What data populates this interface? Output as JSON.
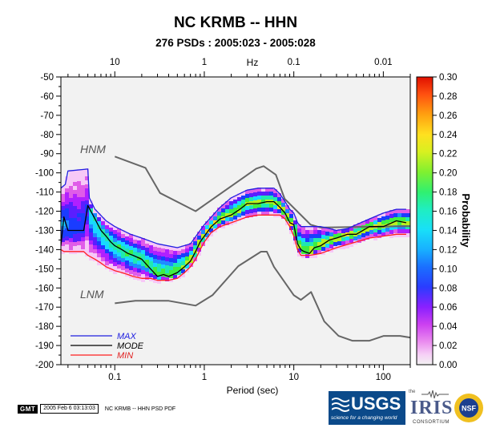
{
  "header": {
    "title": "NC KRMB -- HHN",
    "subtitle": "276 PSDs : 2005:023 - 2005:028"
  },
  "chart_data": {
    "type": "heatmap",
    "title": "NC KRMB -- HHN",
    "subtitle": "276 PSDs : 2005:023 - 2005:028",
    "xlabel": "Period (sec)",
    "ylabel": "",
    "x_scale": "log",
    "xlim": [
      0.025,
      200
    ],
    "ylim": [
      -200,
      -50
    ],
    "x_ticks": [
      0.1,
      1,
      10,
      100
    ],
    "x_tick_labels": [
      "0.1",
      "1",
      "10",
      "100"
    ],
    "y_ticks": [
      -50,
      -60,
      -70,
      -80,
      -90,
      -100,
      -110,
      -120,
      -130,
      -140,
      -150,
      -160,
      -170,
      -180,
      -190,
      -200
    ],
    "top_axis_label": "Hz",
    "top_ticks": [
      {
        "period": 0.1,
        "label": "10"
      },
      {
        "period": 1,
        "label": "1"
      },
      {
        "period": 10,
        "label": "0.1"
      },
      {
        "period": 100,
        "label": "0.01"
      }
    ],
    "colorbar": {
      "label": "Probability",
      "range": [
        0.0,
        0.3
      ],
      "ticks": [
        "0.30",
        "0.28",
        "0.26",
        "0.24",
        "0.22",
        "0.20",
        "0.18",
        "0.16",
        "0.14",
        "0.12",
        "0.10",
        "0.08",
        "0.06",
        "0.04",
        "0.02",
        "0.00"
      ],
      "colors": [
        "#f2f2f2",
        "#f7c8f7",
        "#e05ce8",
        "#b020ff",
        "#5a1eff",
        "#1a3cff",
        "#1f8cff",
        "#18d8ff",
        "#20e8b0",
        "#40ee40",
        "#b8f020",
        "#ffe020",
        "#ff9010",
        "#ff3010",
        "#e00000"
      ]
    },
    "reference_labels": {
      "hnm": "HNM",
      "lnm": "LNM"
    },
    "legend": [
      {
        "name": "MAX",
        "color": "#2020e0"
      },
      {
        "name": "MODE",
        "color": "#000000"
      },
      {
        "name": "MIN",
        "color": "#ff2020"
      }
    ],
    "legend_placement": "bottom-left",
    "series": [
      {
        "name": "HNM",
        "color": "#666666",
        "x": [
          0.1,
          0.22,
          0.32,
          0.8,
          3.8,
          4.6,
          6.3,
          7.9,
          15.4,
          20,
          354
        ],
        "y": [
          -91.5,
          -97.4,
          -110.5,
          -120,
          -97.8,
          -96.5,
          -101,
          -113.5,
          -127,
          -128.5,
          -127.6
        ]
      },
      {
        "name": "LNM",
        "color": "#666666",
        "x": [
          0.1,
          0.17,
          0.4,
          0.8,
          1.24,
          2.4,
          4.3,
          5.0,
          6.0,
          10.0,
          12.0,
          15.6,
          21.9,
          31.6,
          45,
          70,
          101,
          154,
          328
        ],
        "y": [
          -168,
          -166.7,
          -166.7,
          -169.2,
          -163.7,
          -148.6,
          -141.1,
          -141.1,
          -149.0,
          -163.8,
          -166.2,
          -162.1,
          -177.5,
          -185.0,
          -187.5,
          -187.5,
          -185.0,
          -185.0,
          -187.5
        ]
      },
      {
        "name": "MAX",
        "color": "#2020e0",
        "x": [
          0.025,
          0.028,
          0.03,
          0.05,
          0.052,
          0.06,
          0.08,
          0.1,
          0.15,
          0.2,
          0.3,
          0.5,
          0.7,
          1,
          1.5,
          2,
          3,
          4,
          5,
          6,
          7,
          8,
          9,
          10,
          11,
          12,
          14,
          17,
          20,
          25,
          30,
          40,
          50,
          70,
          100,
          140,
          180
        ],
        "y": [
          -108,
          -106,
          -99,
          -98,
          -113,
          -119,
          -125,
          -128,
          -132,
          -134,
          -137,
          -139,
          -137,
          -127,
          -118,
          -113,
          -109,
          -108,
          -108,
          -108,
          -111,
          -115,
          -119,
          -121,
          -126,
          -128,
          -128,
          -128,
          -128,
          -129,
          -130,
          -129,
          -127,
          -124,
          -121,
          -119,
          -119
        ]
      },
      {
        "name": "MODE",
        "color": "#000000",
        "x": [
          0.025,
          0.027,
          0.03,
          0.035,
          0.04,
          0.045,
          0.05,
          0.06,
          0.07,
          0.08,
          0.09,
          0.1,
          0.12,
          0.14,
          0.16,
          0.2,
          0.25,
          0.3,
          0.35,
          0.4,
          0.5,
          0.6,
          0.7,
          0.8,
          0.9,
          1,
          1.2,
          1.5,
          2,
          2.5,
          3,
          4,
          5,
          6,
          7,
          8,
          9,
          10,
          11,
          12,
          13,
          15,
          17,
          20,
          25,
          30,
          40,
          50,
          70,
          100,
          140,
          180
        ],
        "y": [
          -138,
          -123,
          -130,
          -130,
          -130,
          -130,
          -117,
          -124,
          -130,
          -133,
          -136,
          -138,
          -140,
          -142,
          -143,
          -145,
          -150,
          -154,
          -153,
          -154,
          -152,
          -149,
          -146,
          -141,
          -136,
          -133,
          -128,
          -124,
          -122,
          -119,
          -116,
          -116,
          -115,
          -115,
          -118,
          -121,
          -126,
          -127,
          -137,
          -140,
          -141,
          -142,
          -139,
          -138,
          -135,
          -134,
          -132,
          -132,
          -128,
          -128,
          -125,
          -126
        ]
      },
      {
        "name": "MIN",
        "color": "#ff2020",
        "x": [
          0.025,
          0.027,
          0.03,
          0.035,
          0.04,
          0.045,
          0.05,
          0.06,
          0.07,
          0.08,
          0.09,
          0.1,
          0.12,
          0.14,
          0.16,
          0.2,
          0.25,
          0.3,
          0.4,
          0.5,
          0.6,
          0.7,
          0.8,
          0.9,
          1,
          1.2,
          1.5,
          2,
          3,
          4,
          5,
          6,
          7,
          8,
          9,
          10,
          11,
          12,
          15,
          20,
          30,
          50,
          70,
          100,
          140,
          180
        ],
        "y": [
          -140,
          -141,
          -141,
          -141,
          -141,
          -141,
          -143,
          -145,
          -147,
          -149,
          -150,
          -151,
          -152,
          -153,
          -154,
          -155,
          -155,
          -156,
          -156,
          -155,
          -152,
          -149,
          -145,
          -140,
          -136,
          -131,
          -128,
          -126,
          -123,
          -122,
          -122,
          -122,
          -122,
          -124,
          -128,
          -133,
          -140,
          -143,
          -143,
          -142,
          -139,
          -136,
          -134,
          -133,
          -132,
          -132
        ]
      }
    ]
  },
  "footer": {
    "gmt_badge": "GMT",
    "timestamp": "2005 Feb  6 03:13:03",
    "caption": "NC KRMB -- HHN PSD PDF"
  },
  "logos": {
    "usgs": {
      "wordmark": "USGS",
      "tagline": "science for a changing world"
    },
    "iris": {
      "the": "the",
      "wordmark": "IRIS",
      "consortium": "CONSORTIUM"
    },
    "nsf": {
      "wordmark": "NSF"
    }
  }
}
